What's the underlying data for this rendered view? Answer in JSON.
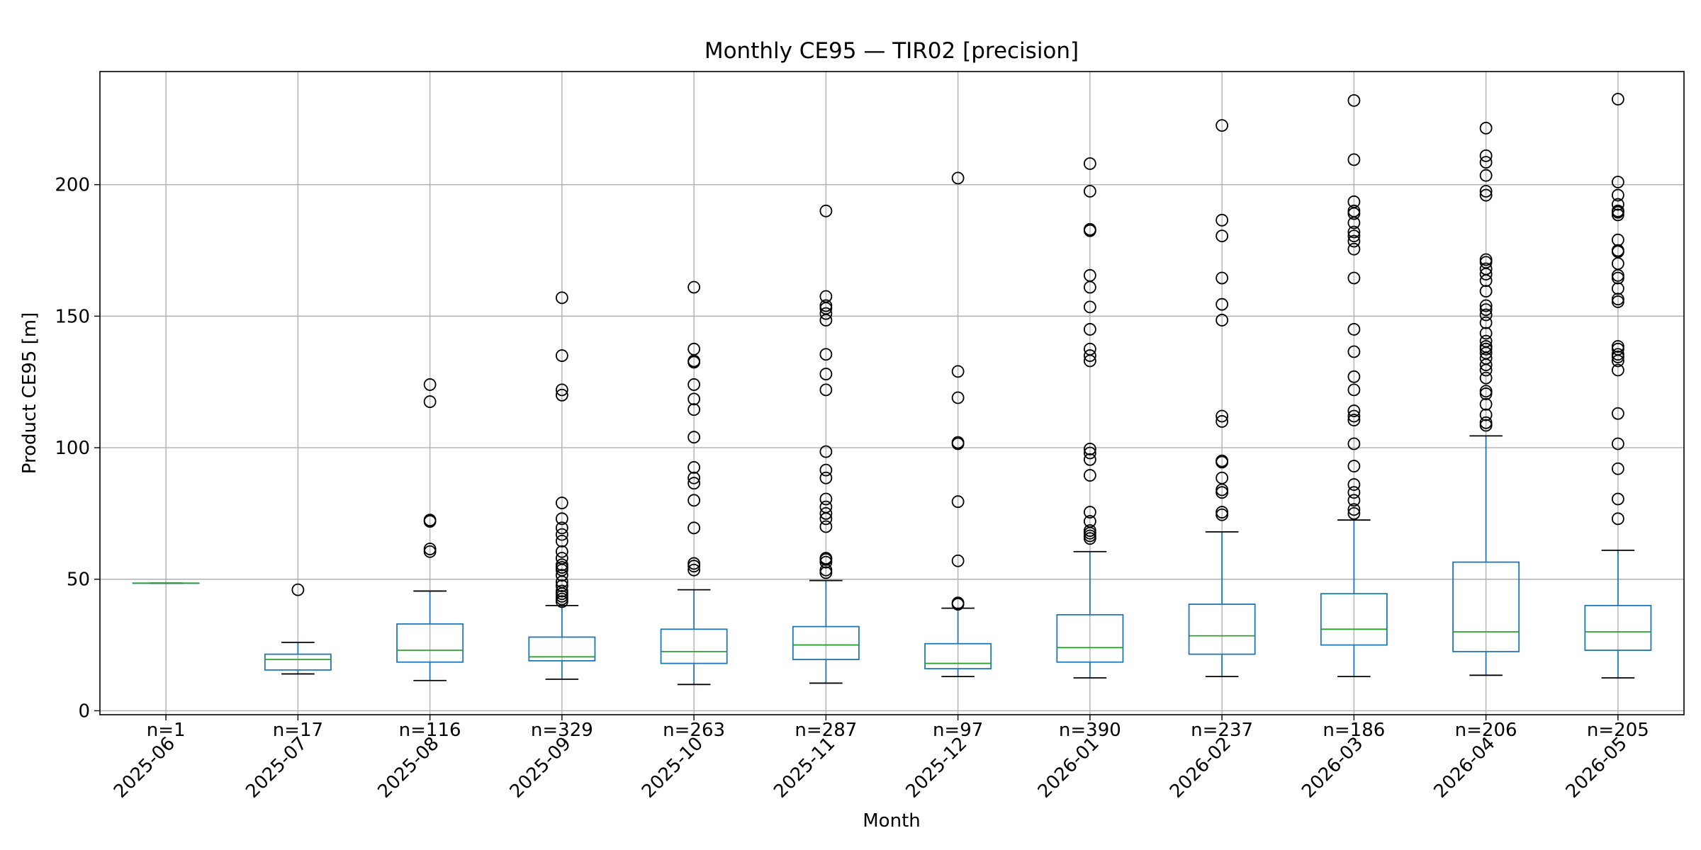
{
  "chart_data": {
    "type": "box",
    "title": "Monthly CE95 — TIR02 [precision]",
    "xlabel": "Month",
    "ylabel": "Product CE95 [m]",
    "ylim": [
      -1.5,
      243
    ],
    "yticks": [
      0,
      50,
      100,
      150,
      200
    ],
    "grid": true,
    "colors": {
      "box": "#1f77b4",
      "median": "#2ca02c",
      "whisker": "#1f77b4",
      "cap": "#000000",
      "flier": "#000000",
      "grid": "#b0b0b0"
    },
    "categories": [
      "2025-06",
      "2025-07",
      "2025-08",
      "2025-09",
      "2025-10",
      "2025-11",
      "2025-12",
      "2026-01",
      "2026-02",
      "2026-03",
      "2026-04",
      "2026-05"
    ],
    "counts": [
      "n=1",
      "n=17",
      "n=116",
      "n=329",
      "n=263",
      "n=287",
      "n=97",
      "n=390",
      "n=237",
      "n=186",
      "n=206",
      "n=205"
    ],
    "boxes": [
      {
        "whislo": 48.5,
        "q1": 48.5,
        "med": 48.5,
        "q3": 48.5,
        "whishi": 48.5,
        "fliers": []
      },
      {
        "whislo": 14,
        "q1": 15.5,
        "med": 19.5,
        "q3": 21.5,
        "whishi": 26,
        "fliers": [
          46
        ]
      },
      {
        "whislo": 11.5,
        "q1": 18.5,
        "med": 23,
        "q3": 33,
        "whishi": 45.5,
        "fliers": [
          60.5,
          61.5,
          72,
          72.5,
          117.5,
          124
        ]
      },
      {
        "whislo": 12,
        "q1": 19,
        "med": 20.5,
        "q3": 28,
        "whishi": 40,
        "fliers": [
          41.5,
          42.5,
          43.5,
          44.5,
          45.5,
          47.5,
          49,
          51.5,
          53.5,
          54.5,
          55.5,
          58,
          60.5,
          64.5,
          67,
          69.5,
          73,
          79,
          120,
          122,
          135,
          157
        ]
      },
      {
        "whislo": 10,
        "q1": 18,
        "med": 22.5,
        "q3": 31,
        "whishi": 46,
        "fliers": [
          53.5,
          55,
          56,
          69.5,
          80,
          86.5,
          88.5,
          92.5,
          104,
          114.5,
          118.5,
          124,
          132.5,
          133,
          137.5,
          161
        ]
      },
      {
        "whislo": 10.5,
        "q1": 19.5,
        "med": 25,
        "q3": 32,
        "whishi": 49.5,
        "fliers": [
          52.5,
          53.5,
          56.5,
          57.5,
          58,
          70,
          73,
          75,
          77.5,
          80.5,
          88.5,
          91.5,
          98.5,
          122,
          128,
          135.5,
          148.5,
          151,
          153,
          154,
          157.5,
          190
        ]
      },
      {
        "whislo": 13,
        "q1": 16,
        "med": 18,
        "q3": 25.5,
        "whishi": 39,
        "fliers": [
          40.5,
          41,
          57,
          79.5,
          101.5,
          102,
          119,
          129,
          202.5
        ]
      },
      {
        "whislo": 12.5,
        "q1": 18.5,
        "med": 24,
        "q3": 36.5,
        "whishi": 60.5,
        "fliers": [
          65.5,
          66.5,
          67.5,
          68.5,
          72,
          75.5,
          89.5,
          95.5,
          98,
          99.5,
          133,
          135,
          137.5,
          145,
          153.5,
          161,
          165.5,
          182.5,
          183,
          197.5,
          208
        ]
      },
      {
        "whislo": 13,
        "q1": 21.5,
        "med": 28.5,
        "q3": 40.5,
        "whishi": 68,
        "fliers": [
          74.5,
          75.5,
          83,
          84,
          88.5,
          94.5,
          95,
          110,
          112,
          148.5,
          154.5,
          164.5,
          180.5,
          186.5,
          222.5
        ]
      },
      {
        "whislo": 13,
        "q1": 25,
        "med": 31,
        "q3": 44.5,
        "whishi": 72.5,
        "fliers": [
          75,
          76.5,
          80,
          83,
          86,
          93,
          101.5,
          110.5,
          112,
          114,
          122,
          127,
          136.5,
          145,
          164.5,
          175.5,
          178.5,
          180.5,
          182,
          185.5,
          189,
          190,
          193.5,
          209.5,
          232
        ]
      },
      {
        "whislo": 13.5,
        "q1": 22.5,
        "med": 30,
        "q3": 56.5,
        "whishi": 104.5,
        "fliers": [
          108.5,
          109.5,
          112.5,
          116.5,
          120.5,
          121.5,
          126.5,
          129.5,
          131.5,
          134,
          136,
          137.5,
          138.5,
          140.5,
          143.5,
          147.5,
          150.5,
          152.5,
          154,
          159.5,
          163.5,
          166,
          168,
          170.5,
          171.5,
          196,
          197.5,
          203.5,
          208.5,
          211,
          221.5
        ]
      },
      {
        "whislo": 12.5,
        "q1": 23,
        "med": 30,
        "q3": 40,
        "whishi": 61,
        "fliers": [
          73,
          80.5,
          92,
          101.5,
          113,
          129.5,
          133,
          134.5,
          135.5,
          137.5,
          138.5,
          155.5,
          156.5,
          160.5,
          164.5,
          165.5,
          170,
          174.5,
          175,
          179,
          188.5,
          189.5,
          190,
          192.5,
          196,
          201,
          232.5
        ]
      }
    ]
  }
}
